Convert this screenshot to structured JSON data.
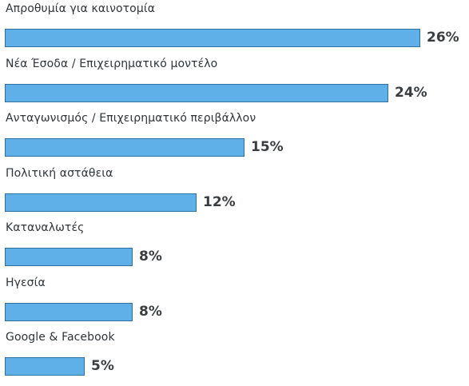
{
  "chart_data": {
    "type": "bar",
    "orientation": "horizontal",
    "categories": [
      "Απροθυμία για καινοτομία",
      "Νέα Έσοδα / Επιχειρηματικό μοντέλο",
      "Ανταγωνισμός / Επιχειρηματικό περιβάλλον",
      "Πολιτική αστάθεια",
      "Καταναλωτές",
      "Ηγεσία",
      "Google & Facebook"
    ],
    "values": [
      26,
      24,
      15,
      12,
      8,
      8,
      5
    ],
    "value_labels": [
      "26%",
      "24%",
      "15%",
      "12%",
      "8%",
      "8%",
      "5%"
    ],
    "unit": "%",
    "title": "",
    "xlabel": "",
    "ylabel": "",
    "xlim": [
      0,
      26
    ],
    "grid": false,
    "legend": "none",
    "bar_color": "#5fb0e9",
    "bar_border_color": "#2f6f9f"
  }
}
